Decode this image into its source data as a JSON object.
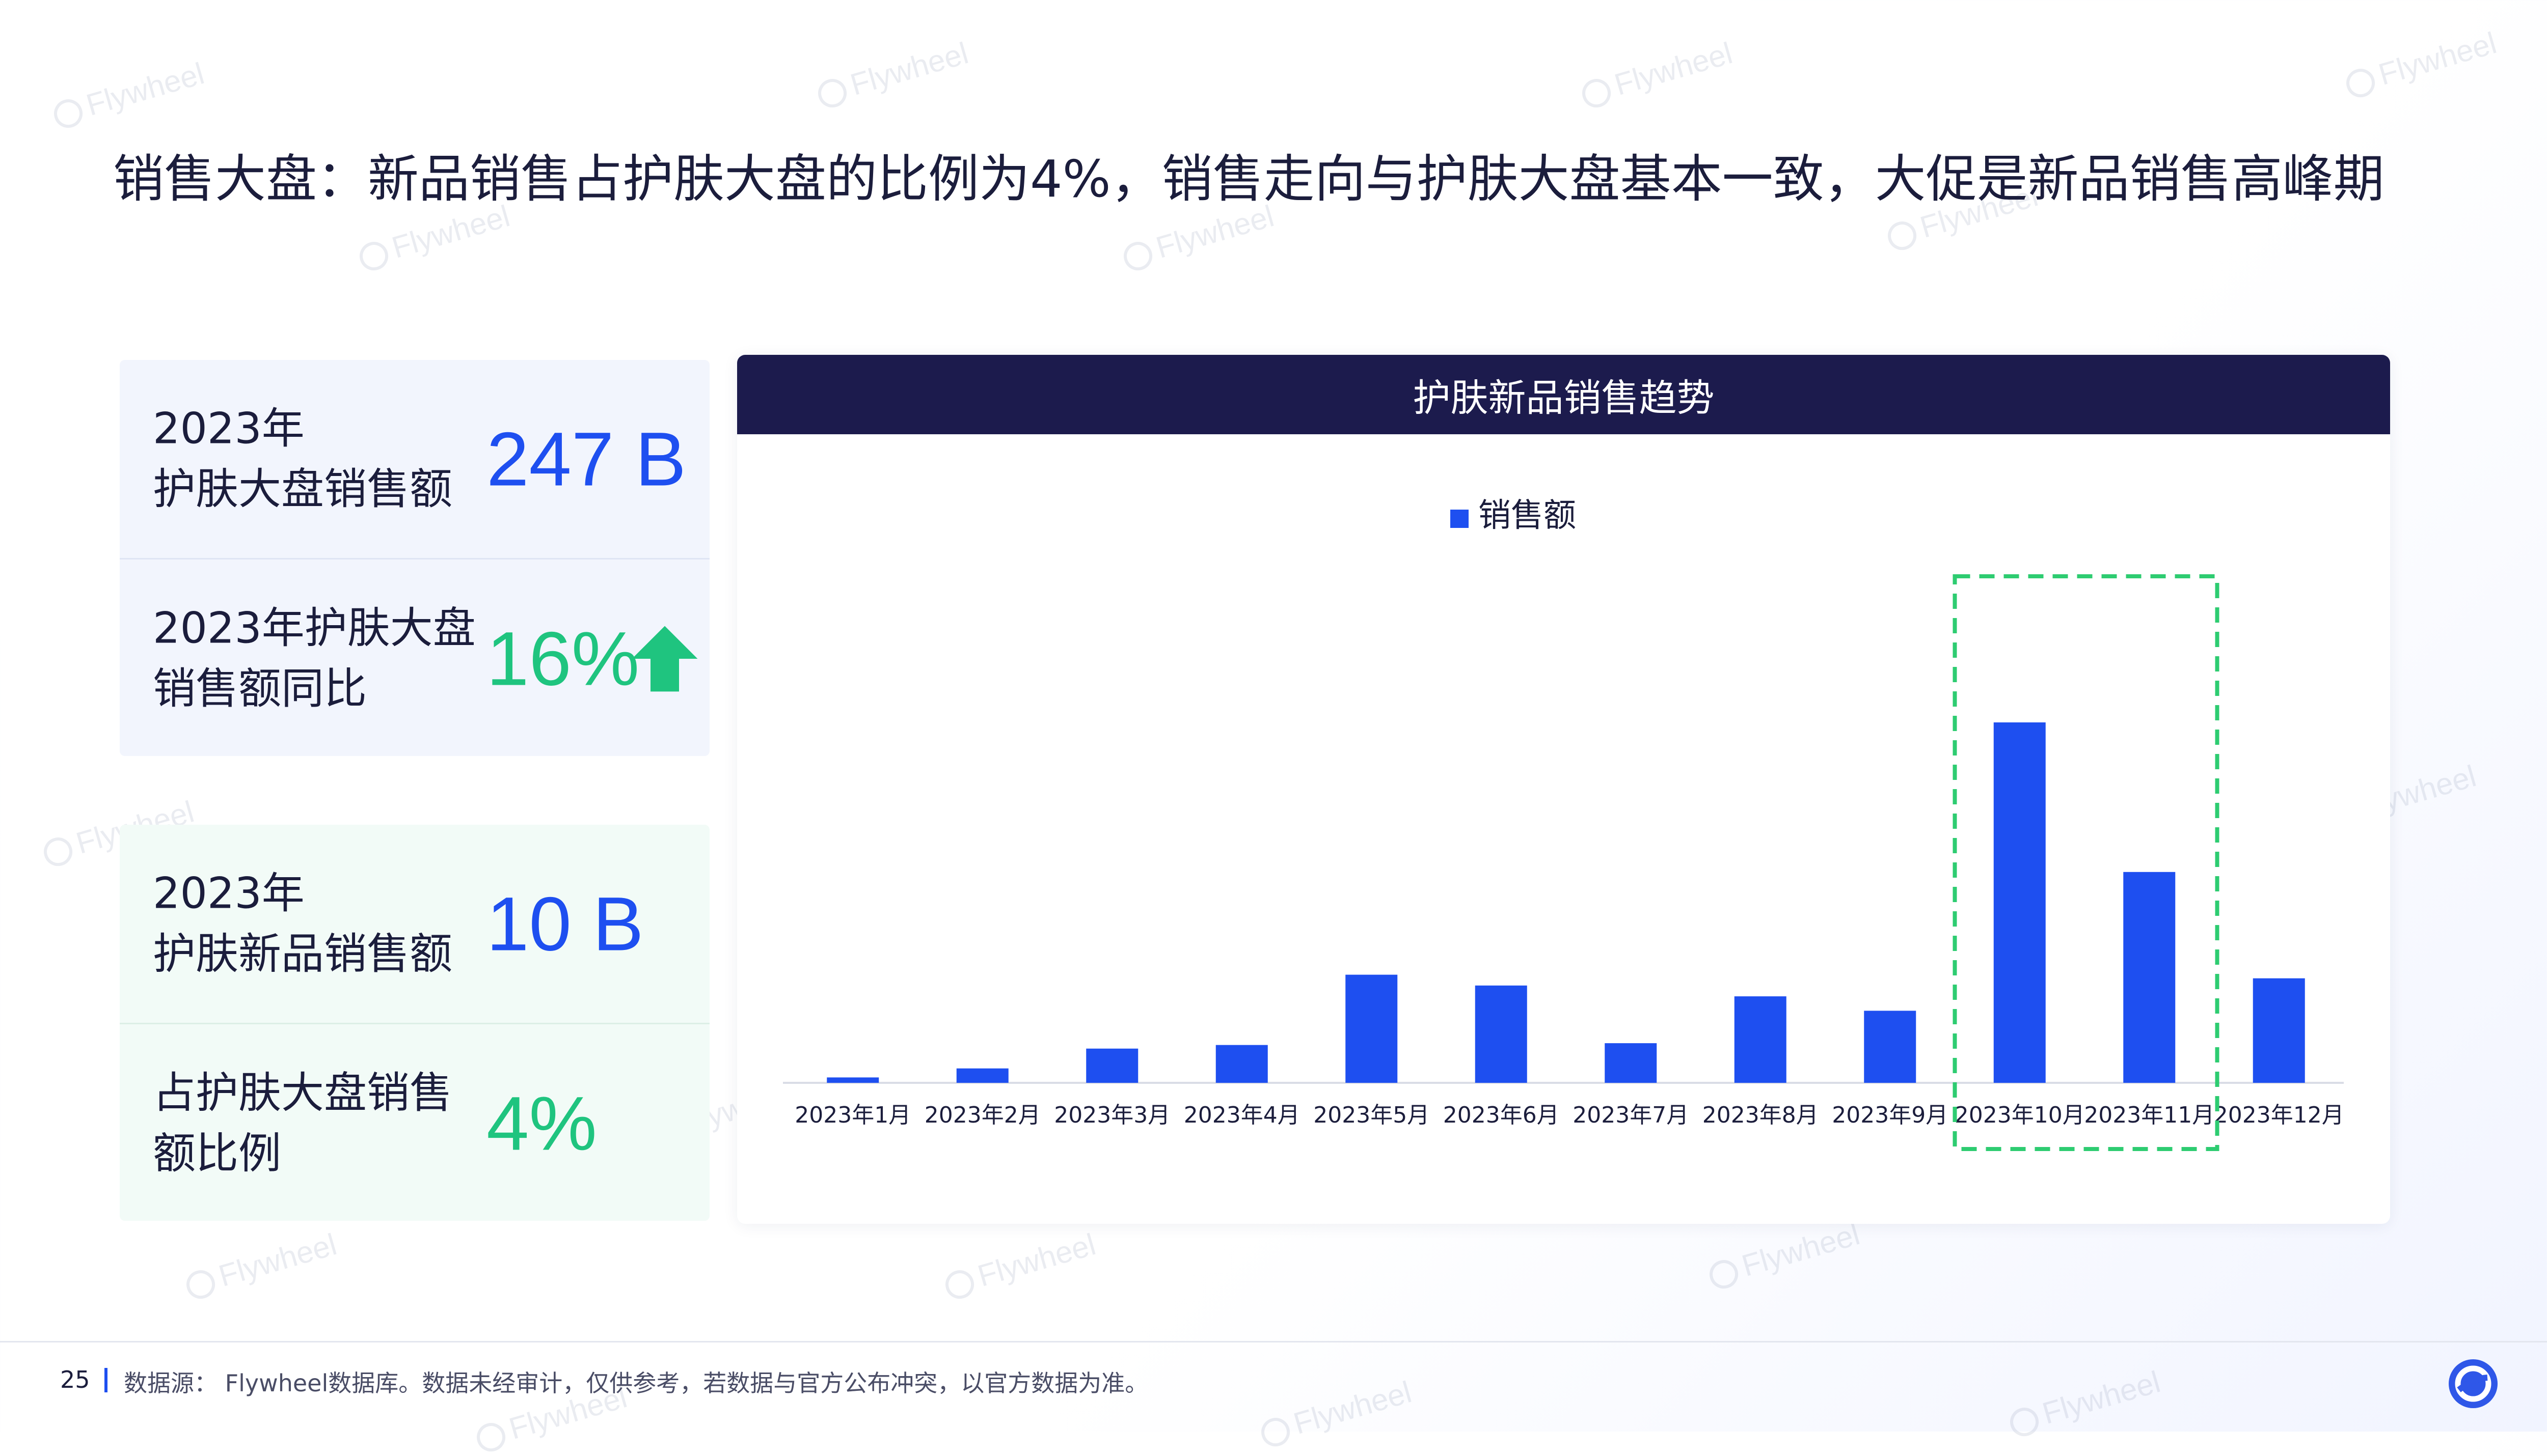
{
  "page": {
    "title": "销售大盘：新品销售占护肤大盘的比例为4%，销售走向与护肤大盘基本一致，大促是新品销售高峰期",
    "watermark": "Flywheel",
    "page_number": "25",
    "source_note": "数据源： Flywheel数据库。数据未经审计，仅供参考，若数据与官方公布冲突，以官方数据为准。"
  },
  "kpis": {
    "market_sales": {
      "label": "2023年\n护肤大盘销售额",
      "value": "247 B"
    },
    "market_yoy": {
      "label": "2023年护肤大盘\n销售额同比",
      "value": "16%",
      "trend": "up"
    },
    "new_sales": {
      "label": "2023年\n护肤新品销售额",
      "value": "10 B"
    },
    "new_share": {
      "label": "占护肤大盘销售\n额比例",
      "value": "4%"
    }
  },
  "colors": {
    "bar": "#1e4ff0",
    "header": "#1c1b4d",
    "accent_green": "#1fc47f",
    "highlight_box": "#2ecc71",
    "kpi_blue": "#1e4ff0"
  },
  "chart_data": {
    "type": "bar",
    "title": "护肤新品销售趋势",
    "legend_position": "top",
    "grid": false,
    "y_axis_visible": false,
    "ylim": [
      0,
      100
    ],
    "categories": [
      "2023年1月",
      "2023年2月",
      "2023年3月",
      "2023年4月",
      "2023年5月",
      "2023年6月",
      "2023年7月",
      "2023年8月",
      "2023年9月",
      "2023年10月",
      "2023年11月",
      "2023年12月"
    ],
    "series": [
      {
        "name": "销售额",
        "values": [
          1.5,
          4,
          9.5,
          10.5,
          30,
          27,
          11,
          24,
          20,
          100,
          58.5,
          29
        ]
      }
    ],
    "highlight": {
      "categories": [
        "2023年10月",
        "2023年11月"
      ],
      "style": "dashed-box"
    }
  }
}
